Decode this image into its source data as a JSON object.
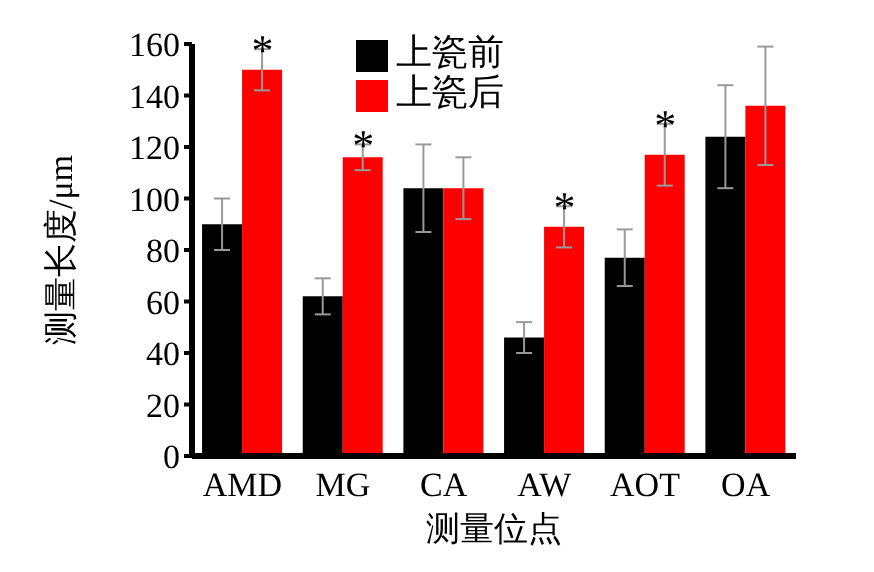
{
  "chart_data": {
    "type": "bar",
    "xlabel": "测量位点",
    "ylabel": "测量长度/μm",
    "categories": [
      "AMD",
      "MG",
      "CA",
      "AW",
      "AOT",
      "OA"
    ],
    "series": [
      {
        "name": "上瓷前",
        "color": "#000000",
        "values": [
          90,
          62,
          104,
          46,
          77,
          124
        ],
        "errors": [
          10,
          7,
          17,
          6,
          11,
          20
        ]
      },
      {
        "name": "上瓷后",
        "color": "#ff0000",
        "values": [
          150,
          116,
          104,
          89,
          117,
          136
        ],
        "errors": [
          8,
          5,
          12,
          8,
          12,
          23
        ]
      }
    ],
    "annotations": [
      {
        "text": "*",
        "x": "AMD",
        "y": 150
      },
      {
        "text": "*",
        "x": "MG",
        "y": 116
      },
      {
        "text": "*",
        "x": "AW",
        "y": 89
      },
      {
        "text": "*",
        "x": "AOT",
        "y": 117
      }
    ],
    "ylim": [
      0,
      160
    ],
    "yticks": [
      0,
      20,
      40,
      60,
      80,
      100,
      120,
      140,
      160
    ],
    "grid": false,
    "legend": "top"
  }
}
